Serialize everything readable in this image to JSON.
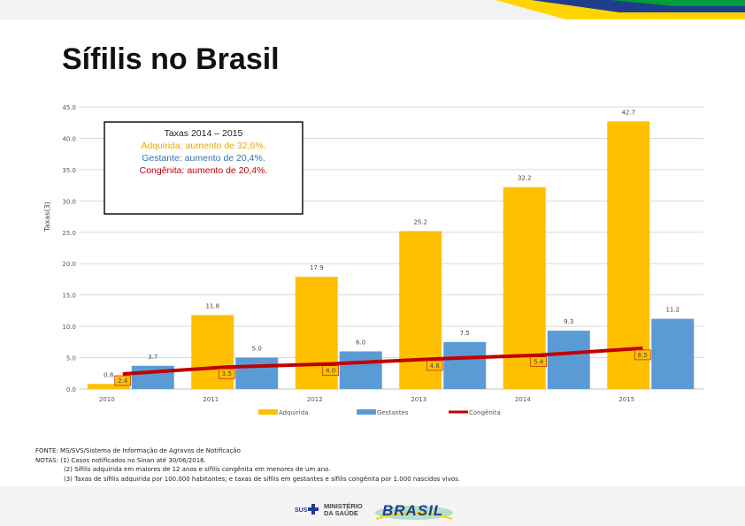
{
  "slide_title": "Sífilis no Brasil",
  "annotation": {
    "heading": "Taxas 2014 – 2015",
    "line_adquirida": "Adquirida: aumento de 32,6%.",
    "line_gestante": "Gestante: aumento de 20,4%.",
    "line_congenita": "Congênita: aumento de 20,4%."
  },
  "footer": {
    "fonte": "FONTE: MS/SVS/Sistema de Informação de Agravos de Notificação",
    "nota1": "NOTAS: (1) Casos notificados no Sinan até 30/06/2016.",
    "nota2": "(2) Sífilis adquirida em maiores de 12 anos e sífilis congênita em menores de um ano.",
    "nota3": "(3) Taxas de sífilis adquirida por 100.000 habitantes; e taxas de sífilis em gestantes e sífilis congênita por 1.000 nascidos vivos."
  },
  "logos": {
    "sus": "SUS",
    "ministerio_line1": "MINISTÉRIO",
    "ministerio_line2": "DA SAÚDE",
    "brasil": "BRASIL"
  },
  "colors": {
    "adquirida": "#FFC000",
    "gestante": "#5B9BD5",
    "congenita": "#C00000",
    "adquirida_text": "#F2B000",
    "gestante_text": "#2E75B6",
    "congenita_text": "#C00000"
  },
  "chart_data": {
    "type": "bar",
    "ylabel": "Taxas(3)",
    "ylim": [
      0,
      45
    ],
    "yticks": [
      "0.0",
      "5.0",
      "10.0",
      "15.0",
      "20.0",
      "25.0",
      "30.0",
      "35.0",
      "40.0",
      "45.0"
    ],
    "categories": [
      "2010",
      "2011",
      "2012",
      "2013",
      "2014",
      "2015"
    ],
    "series": [
      {
        "name": "Adquirida",
        "kind": "bar",
        "values": [
          0.8,
          11.8,
          17.9,
          25.2,
          32.2,
          42.7
        ],
        "labels": [
          "0.8",
          "11.8",
          "17.9",
          "25.2",
          "32.2",
          "42.7"
        ]
      },
      {
        "name": "Gestantes",
        "kind": "bar",
        "values": [
          3.7,
          5.0,
          6.0,
          7.5,
          9.3,
          11.2
        ],
        "labels": [
          "3.7",
          "5.0",
          "6.0",
          "7.5",
          "9.3",
          "11.2"
        ]
      },
      {
        "name": "Congênita",
        "kind": "line",
        "values": [
          2.4,
          3.5,
          4.0,
          4.8,
          5.4,
          6.5
        ],
        "labels": [
          "2.4",
          "3.5",
          "4.0",
          "4.8",
          "5.4",
          "6.5"
        ]
      }
    ]
  }
}
